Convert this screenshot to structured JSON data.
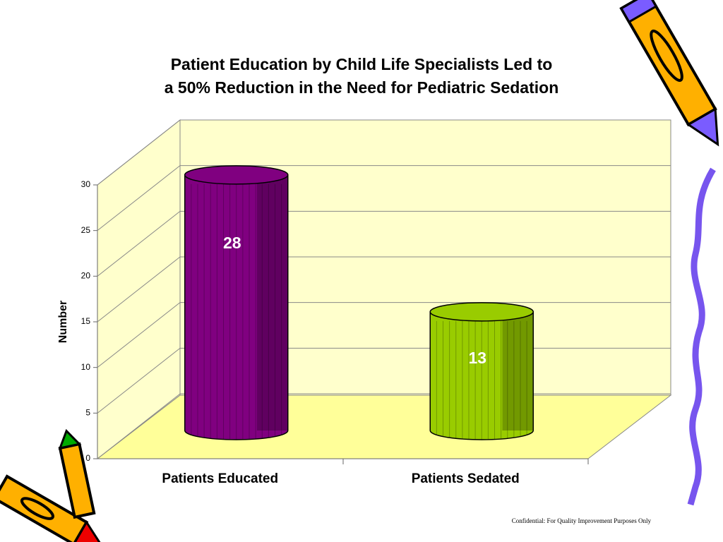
{
  "chart_data": {
    "type": "bar3d",
    "title": "Patient Education by Child Life Specialists Led to a 50% Reduction in the Need for Pediatric Sedation",
    "categories": [
      "Patients Educated",
      "Patients Sedated"
    ],
    "values": [
      28,
      13
    ],
    "colors": [
      "#800080",
      "#99cc00"
    ],
    "ylabel": "Number",
    "ylim": [
      0,
      30
    ],
    "yticks": [
      0,
      5,
      10,
      15,
      20,
      25,
      30
    ],
    "grid": true,
    "footer": "Confidential: For Quality Improvement Purposes Only"
  }
}
